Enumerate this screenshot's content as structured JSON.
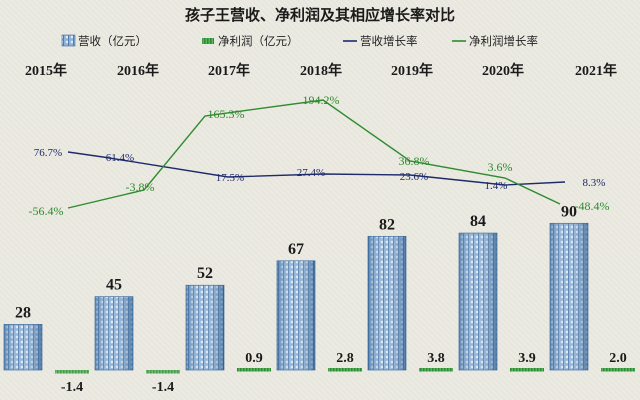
{
  "chart_data": {
    "type": "bar",
    "title": "孩子王营收、净利润及其相应增长率对比",
    "categories": [
      "2015年",
      "2016年",
      "2017年",
      "2018年",
      "2019年",
      "2020年",
      "2021年"
    ],
    "series": [
      {
        "name": "营收（亿元）",
        "type": "bar",
        "values": [
          28,
          45,
          52,
          67,
          82,
          84,
          90
        ],
        "labels": [
          "28",
          "45",
          "52",
          "67",
          "82",
          "84",
          "90"
        ]
      },
      {
        "name": "净利润（亿元）",
        "type": "bar",
        "values": [
          -1.4,
          -1.4,
          0.9,
          2.8,
          3.8,
          3.9,
          2.0
        ],
        "labels": [
          "-1.4",
          "-1.4",
          "0.9",
          "2.8",
          "3.8",
          "3.9",
          "2.0"
        ]
      },
      {
        "name": "营收增长率",
        "type": "line",
        "values": [
          76.7,
          61.4,
          17.5,
          27.4,
          23.6,
          1.4,
          8.3
        ],
        "labels": [
          "76.7%",
          "61.4%",
          "17.5%",
          "27.4%",
          "23.6%",
          "1.4%",
          "8.3%"
        ]
      },
      {
        "name": "净利润增长率",
        "type": "line",
        "values": [
          -56.4,
          -3.8,
          165.3,
          194.2,
          36.8,
          3.6,
          -48.4
        ],
        "labels": [
          "-56.4%",
          "-3.8%",
          "165.3%",
          "194.2%",
          "36.8%",
          "3.6%",
          "-48.4%"
        ]
      }
    ],
    "colors": {
      "revenue_bar": "#7fa4cc",
      "revenue_bar_dark": "#3f6d9e",
      "profit_bar": "#3f9a45",
      "revenue_line": "#1f2a6b",
      "profit_line": "#2e8b2e",
      "title": "#1a1a1a"
    },
    "legend_position": "top",
    "grid": false
  }
}
